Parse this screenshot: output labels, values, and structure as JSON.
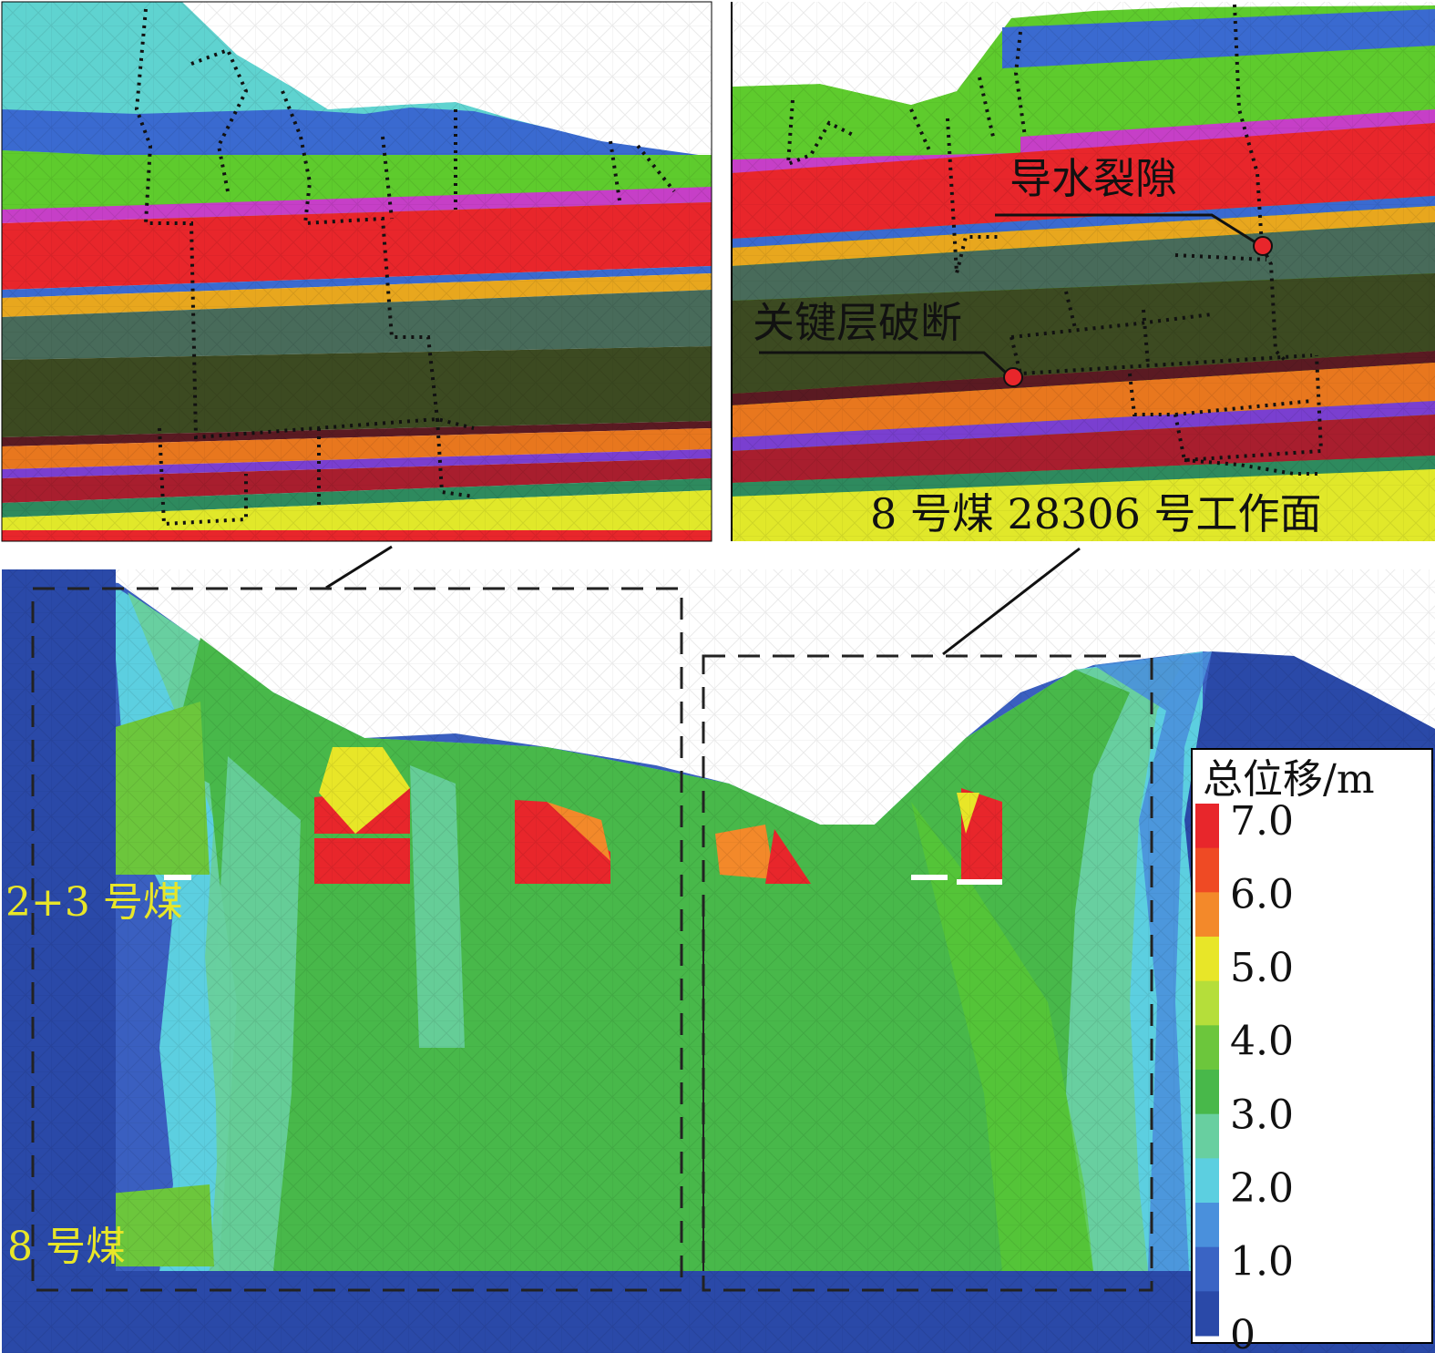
{
  "labels": {
    "water_fracture": "导水裂隙",
    "key_layer_break": "关键层破断",
    "working_face": "8 号煤 28306 号工作面",
    "seam_2_3": "2+3 号煤",
    "seam_8": "8 号煤"
  },
  "legend": {
    "title": "总位移/m",
    "ticks": [
      "7.0",
      "6.0",
      "5.0",
      "4.0",
      "3.0",
      "2.0",
      "1.0",
      "0"
    ],
    "colors": [
      "#e8262b",
      "#ef4a24",
      "#f3892a",
      "#e8e628",
      "#b5de3a",
      "#6cc63c",
      "#48b84a",
      "#68cfa0",
      "#5ccfe0",
      "#4a90dc",
      "#3a64c4",
      "#2a49a8"
    ]
  },
  "strata_colors": {
    "cyan": "#5fd3d0",
    "blue": "#3a6ad0",
    "green": "#5ecb2d",
    "magenta": "#c63fc7",
    "red": "#e8262b",
    "orange_yellow": "#e8a71e",
    "grey_green": "#486b5a",
    "dark_olive": "#3c4a21",
    "maroon": "#5a1a22",
    "orange": "#e8771e",
    "purple": "#7a3fd0",
    "dark_red": "#a81e2e",
    "teal": "#2e8a5e",
    "yellow": "#e1e82a"
  }
}
